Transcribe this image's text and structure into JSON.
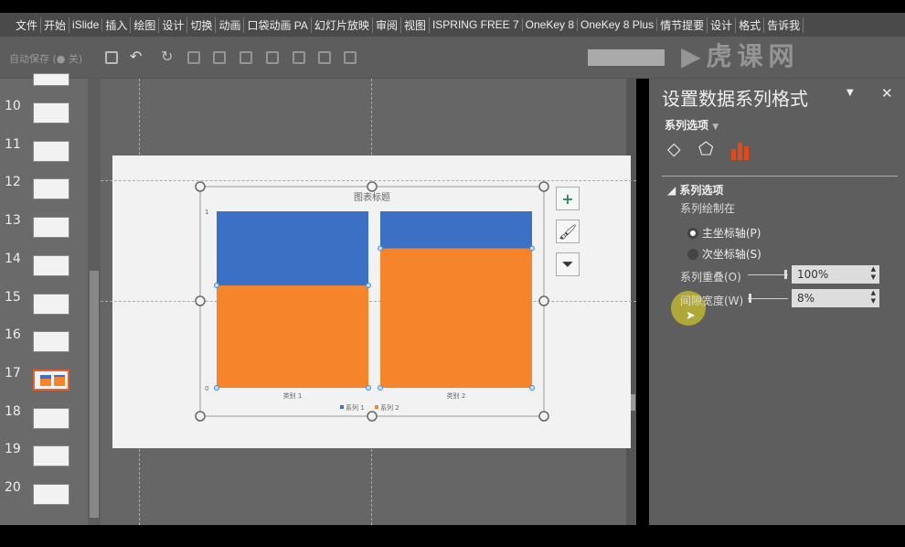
{
  "menu": [
    "文件",
    "开始",
    "iSlide",
    "插入",
    "绘图",
    "设计",
    "切换",
    "动画",
    "口袋动画 PA",
    "幻灯片放映",
    "审阅",
    "视图",
    "ISPRING FREE 7",
    "OneKey 8",
    "OneKey 8 Plus",
    "情节提要",
    "设计",
    "格式",
    "告诉我"
  ],
  "toolbar": {
    "autosave": "自动保存",
    "autosave_state": "关"
  },
  "slides": [
    {
      "n": "10"
    },
    {
      "n": "11"
    },
    {
      "n": "12"
    },
    {
      "n": "13"
    },
    {
      "n": "14"
    },
    {
      "n": "15"
    },
    {
      "n": "16"
    },
    {
      "n": "17",
      "selected": true
    },
    {
      "n": "18"
    },
    {
      "n": "19"
    },
    {
      "n": "20"
    }
  ],
  "chart_data": {
    "type": "bar",
    "title": "图表标题",
    "categories": [
      "类别 1",
      "类别 2"
    ],
    "yticks": [
      "0",
      "1"
    ],
    "ylim": [
      0,
      1
    ],
    "overlap": "100%",
    "series": [
      {
        "name": "系列 1",
        "values": [
          1,
          1
        ],
        "color": "#3b70c4"
      },
      {
        "name": "系列 2",
        "values": [
          0.58,
          0.79
        ],
        "color": "#f5842b"
      }
    ],
    "legend": "bottom"
  },
  "panel": {
    "title": "设置数据系列格式",
    "dropdown": "系列选项",
    "section": "系列选项",
    "plot_on": "系列绘制在",
    "primary": "主坐标轴(P)",
    "secondary": "次坐标轴(S)",
    "overlap_label": "系列重叠(O)",
    "overlap_value": "100%",
    "overlap_level": 1.0,
    "gap_label": "间隙宽度(W)",
    "gap_value": "8%",
    "gap_level": 0.016,
    "accent": "#e04a1c"
  },
  "watermark": "虎课网"
}
